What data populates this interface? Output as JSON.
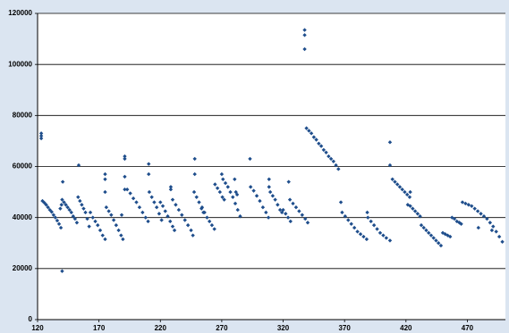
{
  "chart_data": {
    "type": "scatter",
    "color": "#1f4e8c",
    "grid": true,
    "xlim": [
      120,
      501
    ],
    "ylim": [
      0,
      120000
    ],
    "xticks": [
      120,
      170,
      220,
      270,
      320,
      370,
      420,
      470
    ],
    "yticks": [
      0,
      20000,
      40000,
      60000,
      80000,
      100000,
      120000
    ],
    "x": [
      123,
      123,
      123,
      124,
      125.5,
      127,
      128.5,
      130,
      131.5,
      133,
      134.5,
      136,
      137.5,
      139,
      138.5,
      139.5,
      140,
      140.5,
      140,
      141.5,
      143,
      144.5,
      146,
      147.5,
      149,
      150.5,
      152,
      153,
      154.5,
      156,
      157.5,
      159,
      160.5,
      162,
      153.5,
      163,
      165,
      167,
      169,
      171,
      173,
      175,
      175,
      175,
      175,
      176,
      178,
      180,
      182,
      184,
      186,
      188,
      189.5,
      188.5,
      191,
      191,
      191,
      191,
      193,
      195.5,
      198,
      200.5,
      203,
      205.5,
      208,
      210,
      210.5,
      210.5,
      211,
      213,
      215,
      217,
      219,
      221,
      220,
      222,
      224,
      226,
      228,
      230,
      231.5,
      228.5,
      228.5,
      230,
      232.5,
      235,
      237.5,
      240,
      242.5,
      245,
      246.5,
      248,
      248,
      247.5,
      249.5,
      251.5,
      253.5,
      255,
      254,
      256,
      258,
      260,
      262,
      264,
      264.5,
      266.5,
      268.5,
      270.5,
      272,
      270,
      271,
      273,
      275,
      277,
      279,
      281,
      283,
      285,
      280.5,
      281.5,
      282.5,
      293,
      293.5,
      296,
      298.5,
      301,
      303.5,
      306,
      308,
      308.5,
      308.5,
      309.5,
      311.5,
      313.5,
      315.5,
      317.5,
      319,
      320,
      322,
      324,
      326,
      324.5,
      325.5,
      328,
      330.5,
      333,
      335.5,
      338,
      340,
      337.5,
      337.5,
      337.5,
      339,
      341,
      343,
      345,
      347,
      349,
      351,
      353,
      355,
      357,
      359,
      361,
      363,
      365,
      367,
      368,
      370.5,
      373,
      375.5,
      378,
      380.5,
      383,
      385.5,
      388,
      388.5,
      389,
      391.5,
      394,
      396.5,
      399,
      401.5,
      404,
      407,
      407,
      407,
      409,
      411,
      413,
      415,
      417,
      419,
      421,
      423,
      423.5,
      421.5,
      423.5,
      425.5,
      427.5,
      429.5,
      431.5,
      432.5,
      434.5,
      436.5,
      438.5,
      440.5,
      442.5,
      444.5,
      446.5,
      448.5,
      450,
      452,
      454,
      456,
      457.5,
      459.5,
      461.5,
      463.5,
      465,
      466,
      468.5,
      471,
      473.5,
      476,
      478.5,
      481,
      483.5,
      486,
      488.5,
      491,
      493.5,
      496,
      498.5,
      490,
      479
    ],
    "values": [
      73000,
      72000,
      71000,
      46500,
      45800,
      45000,
      44000,
      43000,
      42200,
      41000,
      40000,
      38800,
      37500,
      36000,
      43500,
      45000,
      19000,
      54000,
      47000,
      46000,
      45000,
      44000,
      43000,
      42000,
      40500,
      39500,
      38000,
      48000,
      46500,
      45000,
      43500,
      42000,
      39500,
      36500,
      60500,
      42000,
      40000,
      38500,
      37000,
      35000,
      33000,
      31500,
      57000,
      55000,
      50000,
      44000,
      42500,
      41000,
      39000,
      37000,
      35000,
      33000,
      31500,
      41000,
      64000,
      63000,
      56000,
      51000,
      51000,
      49500,
      47500,
      46000,
      44000,
      42000,
      40000,
      38500,
      61000,
      57000,
      50000,
      48000,
      46000,
      44000,
      41500,
      39000,
      46000,
      44500,
      42500,
      40500,
      38500,
      36500,
      35000,
      52000,
      51000,
      47000,
      45000,
      43000,
      41000,
      39000,
      37000,
      35000,
      33000,
      63000,
      57000,
      50000,
      48000,
      46000,
      43500,
      42000,
      44000,
      42000,
      40000,
      38500,
      37000,
      35500,
      53000,
      51500,
      50000,
      48000,
      47000,
      57000,
      55000,
      53500,
      52000,
      50000,
      48000,
      45500,
      43000,
      40500,
      55000,
      50000,
      49000,
      63000,
      52000,
      50500,
      48500,
      46500,
      44000,
      42000,
      40000,
      55000,
      52000,
      50000,
      48500,
      47000,
      45000,
      43000,
      42000,
      43000,
      41500,
      40000,
      38500,
      54000,
      47000,
      45500,
      44000,
      42500,
      41000,
      39500,
      38000,
      113500,
      111500,
      106000,
      75000,
      74000,
      73000,
      71500,
      70500,
      69000,
      68000,
      66500,
      65500,
      64000,
      63000,
      62000,
      60500,
      59000,
      46000,
      42000,
      40500,
      39000,
      37500,
      36000,
      34500,
      33500,
      32500,
      31500,
      42000,
      40000,
      38500,
      37000,
      35500,
      34000,
      33000,
      32000,
      31000,
      69500,
      60500,
      55000,
      54000,
      53000,
      52000,
      51000,
      50000,
      49000,
      48000,
      50000,
      45000,
      44500,
      43500,
      42500,
      41500,
      40500,
      37000,
      36000,
      35000,
      34000,
      33000,
      32000,
      31000,
      30000,
      29000,
      34000,
      33500,
      33000,
      32500,
      40000,
      39500,
      38500,
      38000,
      37500,
      46000,
      45500,
      45000,
      44500,
      43500,
      42500,
      41500,
      40500,
      39500,
      38000,
      36500,
      34500,
      32500,
      30500,
      35000,
      36000
    ]
  }
}
